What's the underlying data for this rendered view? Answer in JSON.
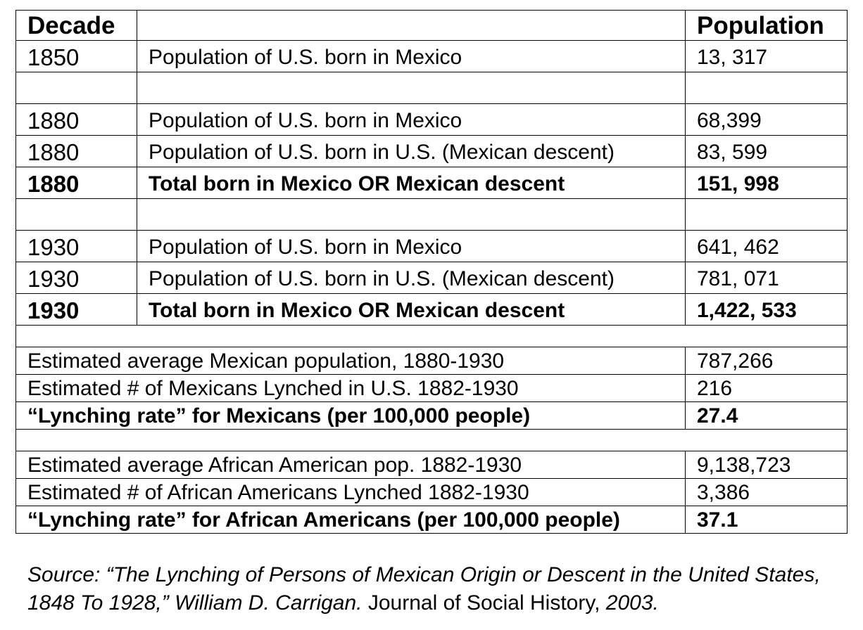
{
  "headers": {
    "decade": "Decade",
    "population": "Population"
  },
  "rows": [
    {
      "year": "1850",
      "label": "Population of U.S. born in Mexico",
      "value": "13, 317"
    },
    {
      "year": "1880",
      "label": "Population of U.S. born in Mexico",
      "value": "68,399"
    },
    {
      "year": "1880",
      "label": "Population of U.S. born in U.S. (Mexican descent)",
      "value": "83, 599"
    },
    {
      "year": "1880",
      "label": "Total born in Mexico OR Mexican descent",
      "value": "151, 998"
    },
    {
      "year": "1930",
      "label": "Population of U.S. born in Mexico",
      "value": "641, 462"
    },
    {
      "year": "1930",
      "label": "Population of U.S. born in U.S. (Mexican descent)",
      "value": "781, 071"
    },
    {
      "year": "1930",
      "label": "Total born in Mexico OR Mexican descent",
      "value": "1,422, 533"
    }
  ],
  "stats": [
    {
      "label": "Estimated average Mexican population, 1880-1930",
      "value": "787,266"
    },
    {
      "label": "Estimated # of Mexicans Lynched in U.S. 1882-1930",
      "value": "216"
    },
    {
      "label": "“Lynching rate” for Mexicans (per 100,000 people)",
      "value": "27.4"
    },
    {
      "label": "Estimated average African American pop. 1882-1930",
      "value": "9,138,723"
    },
    {
      "label": "Estimated # of African Americans Lynched 1882-1930",
      "value": "3,386"
    },
    {
      "label": "“Lynching rate” for African Americans (per 100,000 people)",
      "value": "37.1"
    }
  ],
  "source": {
    "prefix": "Source: “The Lynching of Persons of Mexican Origin or Descent in the United States, 1848 To 1928,” William D. Carrigan.",
    "journal": "Journal of Social History,",
    "year": "2003."
  }
}
